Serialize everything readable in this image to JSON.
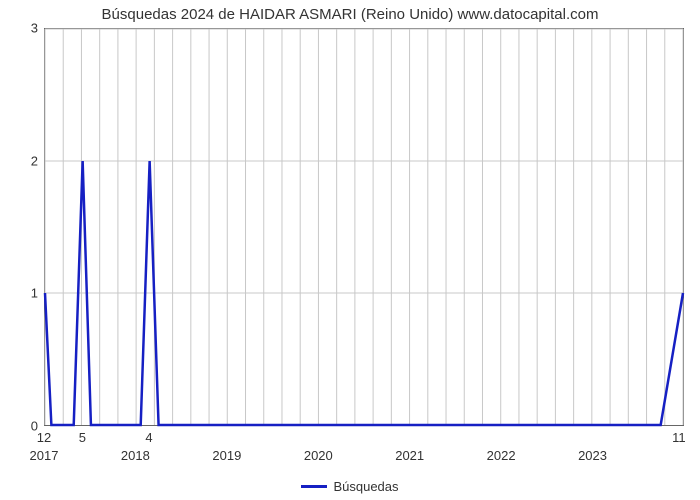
{
  "chart": {
    "type": "line",
    "title": "Búsquedas 2024 de HAIDAR ASMARI (Reino Unido) www.datocapital.com",
    "title_fontsize": 15,
    "title_color": "#333333",
    "background_color": "#ffffff",
    "plot_border_color": "#666666",
    "grid_color": "#c8c8c8",
    "grid_width": 1,
    "font_family": "Arial, Helvetica, sans-serif",
    "xlim": [
      0,
      1
    ],
    "ylim": [
      0,
      3
    ],
    "xticks": {
      "positions": [
        0,
        0.1428,
        0.2857,
        0.4286,
        0.5714,
        0.7143,
        0.8571,
        1.0
      ],
      "labels": [
        "2017",
        "2018",
        "2019",
        "2020",
        "2021",
        "2022",
        "2023",
        ""
      ]
    },
    "yticks": {
      "positions": [
        0,
        1,
        2,
        3
      ],
      "labels": [
        "0",
        "1",
        "2",
        "3"
      ]
    },
    "x_minor_grid_positions": [
      0.02857,
      0.05714,
      0.08571,
      0.11428,
      0.17143,
      0.2,
      0.22857,
      0.25714,
      0.31428,
      0.34286,
      0.37143,
      0.4,
      0.45714,
      0.48571,
      0.51428,
      0.54286,
      0.6,
      0.62857,
      0.65714,
      0.68571,
      0.74286,
      0.77143,
      0.8,
      0.82857,
      0.88571,
      0.91428,
      0.94286,
      0.97143
    ],
    "series": {
      "color": "#1620c3",
      "width": 2.5,
      "points": [
        {
          "x": 0.0,
          "y": 1.0
        },
        {
          "x": 0.01,
          "y": 0.0
        },
        {
          "x": 0.045,
          "y": 0.0
        },
        {
          "x": 0.059,
          "y": 2.0
        },
        {
          "x": 0.072,
          "y": 0.0
        },
        {
          "x": 0.15,
          "y": 0.0
        },
        {
          "x": 0.164,
          "y": 2.0
        },
        {
          "x": 0.178,
          "y": 0.0
        },
        {
          "x": 0.965,
          "y": 0.0
        },
        {
          "x": 1.0,
          "y": 1.0
        }
      ]
    },
    "value_labels": [
      {
        "x": 0.0,
        "text": "12"
      },
      {
        "x": 0.06,
        "text": "5"
      },
      {
        "x": 0.164,
        "text": "4"
      },
      {
        "x": 0.992,
        "text": "11"
      }
    ],
    "legend": {
      "label": "Búsquedas",
      "swatch_color": "#1620c3"
    }
  }
}
